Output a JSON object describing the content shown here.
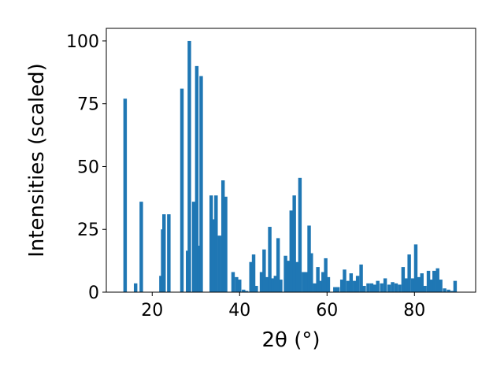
{
  "chart_data": {
    "type": "bar",
    "title": "",
    "xlabel": "2θ (°)",
    "ylabel": "Intensities (scaled)",
    "xlim": [
      9.5,
      94
    ],
    "ylim": [
      0,
      105
    ],
    "xticks": [
      20,
      40,
      60,
      80
    ],
    "yticks": [
      0,
      25,
      50,
      75,
      100
    ],
    "grid": false,
    "bar_color": "#1f77b4",
    "bar_width": 0.8,
    "x": [
      13.8,
      16.2,
      17.5,
      22.0,
      22.4,
      22.7,
      23.8,
      26.8,
      28.1,
      28.5,
      29.5,
      30.2,
      30.7,
      31.2,
      33.5,
      34.0,
      34.6,
      35.4,
      36.2,
      36.8,
      38.5,
      39.3,
      40.0,
      40.9,
      41.6,
      42.6,
      43.2,
      43.8,
      45.0,
      45.6,
      46.2,
      46.9,
      47.6,
      48.2,
      48.8,
      49.4,
      50.5,
      51.2,
      51.8,
      52.5,
      53.2,
      53.8,
      54.6,
      55.2,
      55.9,
      56.4,
      57.2,
      57.9,
      58.4,
      59.1,
      59.7,
      60.3,
      61.8,
      62.5,
      63.4,
      64.0,
      64.8,
      65.5,
      66.3,
      67.0,
      67.8,
      68.5,
      69.4,
      70.2,
      70.9,
      71.6,
      72.5,
      73.3,
      74.2,
      75.0,
      75.8,
      76.6,
      77.4,
      78.1,
      78.8,
      79.6,
      80.3,
      81.0,
      81.7,
      82.4,
      83.2,
      83.8,
      84.5,
      85.3,
      86.0,
      86.9,
      87.8,
      88.6,
      89.3
    ],
    "values": [
      77,
      3.5,
      36,
      6.5,
      25,
      31,
      31,
      81,
      16.5,
      100,
      36,
      90,
      18.5,
      86,
      38.5,
      29,
      38.5,
      22.5,
      44.5,
      38,
      8,
      6,
      5,
      1,
      0.5,
      12,
      15,
      2.5,
      8,
      17,
      6,
      26,
      5.5,
      6.5,
      21.5,
      5,
      14.5,
      12.5,
      32.5,
      38.5,
      12,
      45.5,
      8,
      8,
      26.5,
      15.5,
      3.5,
      10,
      4.5,
      8,
      13.5,
      6,
      2,
      2,
      5,
      9,
      4.5,
      7.5,
      4.5,
      6.5,
      11,
      2.5,
      3.5,
      3.5,
      3,
      4.5,
      3.5,
      5.5,
      3,
      4,
      3.5,
      3,
      10,
      5.5,
      15,
      5.5,
      19,
      6,
      7.5,
      2.5,
      8.5,
      5,
      8.5,
      9.5,
      5,
      1.5,
      1,
      0.5,
      4.5
    ]
  }
}
